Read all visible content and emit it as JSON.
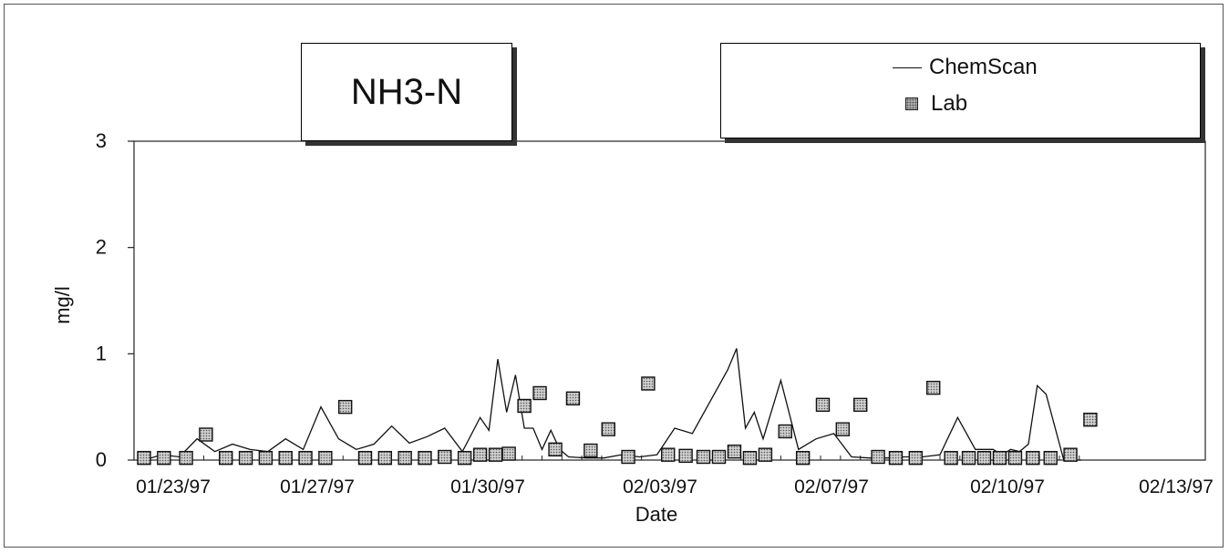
{
  "chart_data": {
    "type": "line",
    "title": "NH3-N",
    "xlabel": "Date",
    "ylabel": "mg/l",
    "ylim": [
      0,
      3
    ],
    "yticks": [
      "0",
      "1",
      "2",
      "3"
    ],
    "xticks": [
      "01/23/97",
      "01/27/97",
      "01/30/97",
      "02/03/97",
      "02/07/97",
      "02/10/97",
      "02/13/97"
    ],
    "legend": {
      "position": "top-right",
      "entries": [
        "ChemScan",
        "Lab"
      ]
    },
    "series": [
      {
        "name": "ChemScan",
        "style": "line",
        "x": [
          0,
          0.4,
          0.8,
          1.2,
          1.6,
          2.0,
          2.4,
          2.8,
          3.2,
          3.6,
          4.0,
          4.4,
          4.8,
          5.2,
          5.6,
          6.0,
          6.4,
          6.8,
          7.2,
          7.6,
          7.8,
          8.0,
          8.2,
          8.4,
          8.6,
          8.8,
          9.0,
          9.2,
          9.4,
          9.6,
          10.0,
          10.4,
          10.8,
          11.2,
          11.6,
          12.0,
          12.4,
          12.8,
          13.2,
          13.4,
          13.6,
          13.8,
          14.0,
          14.4,
          14.8,
          15.2,
          15.6,
          16.0,
          16.4,
          16.8,
          17.2,
          17.6,
          18.0,
          18.4,
          18.8,
          19.2,
          19.4,
          19.6,
          19.8,
          20.0,
          20.2,
          20.4,
          20.8,
          21.2
        ],
        "y": [
          0.0,
          0.05,
          0.03,
          0.2,
          0.08,
          0.15,
          0.1,
          0.08,
          0.2,
          0.1,
          0.5,
          0.2,
          0.1,
          0.15,
          0.32,
          0.16,
          0.22,
          0.3,
          0.08,
          0.4,
          0.28,
          0.95,
          0.45,
          0.8,
          0.3,
          0.3,
          0.1,
          0.28,
          0.1,
          0.03,
          0.02,
          0.02,
          0.05,
          0.03,
          0.05,
          0.3,
          0.25,
          0.55,
          0.85,
          1.05,
          0.3,
          0.45,
          0.2,
          0.75,
          0.1,
          0.2,
          0.25,
          0.03,
          0.02,
          0.02,
          0.03,
          0.03,
          0.05,
          0.4,
          0.1,
          0.1,
          0.05,
          0.1,
          0.08,
          0.15,
          0.7,
          0.62,
          0.0,
          0.0
        ]
      },
      {
        "name": "Lab",
        "style": "markers",
        "x": [
          0,
          0.45,
          0.95,
          1.4,
          1.85,
          2.3,
          2.75,
          3.2,
          3.65,
          4.1,
          4.55,
          5.0,
          5.45,
          5.9,
          6.35,
          6.8,
          7.25,
          7.6,
          7.95,
          8.25,
          8.6,
          8.95,
          9.3,
          9.7,
          10.1,
          10.5,
          10.95,
          11.4,
          11.85,
          12.25,
          12.65,
          13.0,
          13.35,
          13.7,
          14.05,
          14.5,
          14.9,
          15.35,
          15.8,
          16.2,
          16.6,
          17.0,
          17.45,
          17.85,
          18.25,
          18.65,
          19.0,
          19.35,
          19.7,
          20.1,
          20.5,
          20.95,
          21.4
        ],
        "y": [
          0.02,
          0.02,
          0.02,
          0.24,
          0.02,
          0.02,
          0.02,
          0.02,
          0.02,
          0.02,
          0.5,
          0.02,
          0.02,
          0.02,
          0.02,
          0.03,
          0.02,
          0.05,
          0.05,
          0.06,
          0.51,
          0.63,
          0.1,
          0.58,
          0.09,
          0.29,
          0.03,
          0.72,
          0.05,
          0.04,
          0.03,
          0.03,
          0.08,
          0.02,
          0.05,
          0.27,
          0.02,
          0.52,
          0.29,
          0.52,
          0.03,
          0.02,
          0.02,
          0.68,
          0.02,
          0.02,
          0.02,
          0.02,
          0.02,
          0.02,
          0.02,
          0.05,
          0.38
        ]
      }
    ]
  }
}
